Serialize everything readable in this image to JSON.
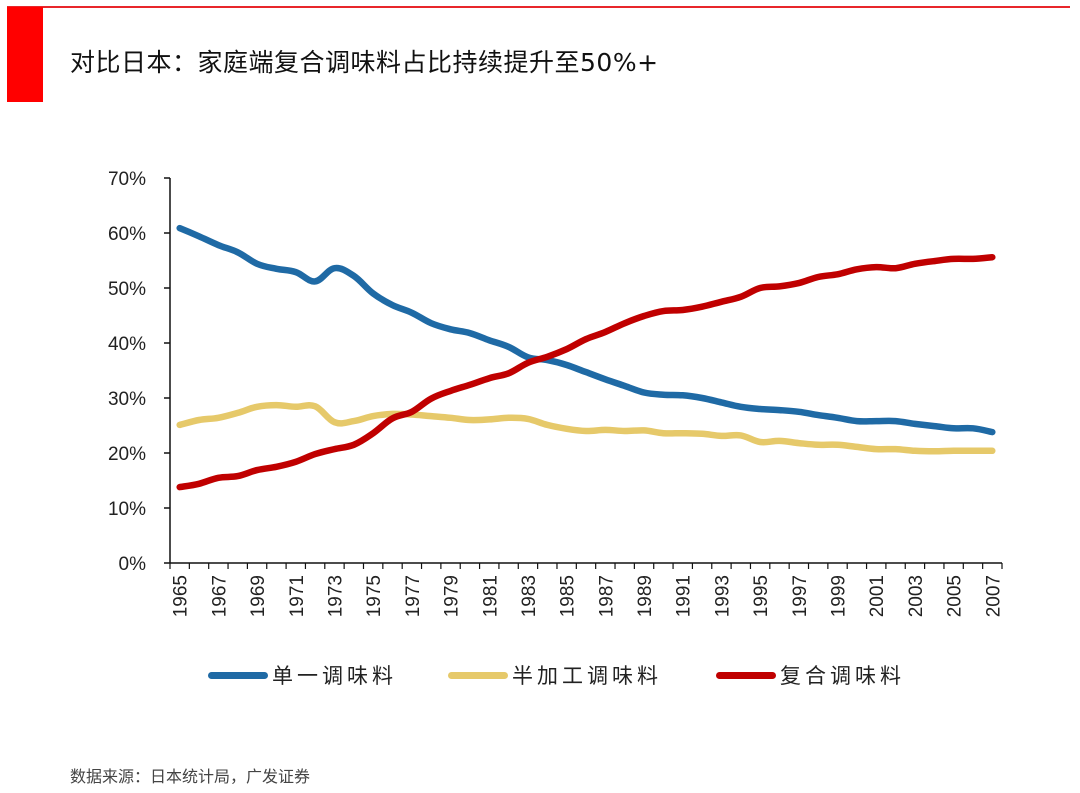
{
  "header": {
    "title": "对比日本：家庭端复合调味料占比持续提升至50%+",
    "accent_color": "#ff0000"
  },
  "source": "数据来源：日本统计局，广发证券",
  "chart_data": {
    "type": "line",
    "title": "对比日本：家庭端复合调味料占比持续提升至50%+",
    "xlabel": "",
    "ylabel": "",
    "ylim": [
      0,
      70
    ],
    "yticks": [
      0,
      10,
      20,
      30,
      40,
      50,
      60,
      70
    ],
    "ytick_labels": [
      "0%",
      "10%",
      "20%",
      "30%",
      "40%",
      "50%",
      "60%",
      "70%"
    ],
    "y_unit": "%",
    "grid": false,
    "legend_position": "bottom",
    "x": [
      "1965",
      "1966",
      "1967",
      "1968",
      "1969",
      "1970",
      "1971",
      "1972",
      "1973",
      "1974",
      "1975",
      "1976",
      "1977",
      "1978",
      "1979",
      "1980",
      "1981",
      "1982",
      "1983",
      "1984",
      "1985",
      "1986",
      "1987",
      "1988",
      "1989",
      "1990",
      "1991",
      "1992",
      "1993",
      "1994",
      "1995",
      "1996",
      "1997",
      "1998",
      "1999",
      "2000",
      "2001",
      "2002",
      "2003",
      "2004",
      "2005",
      "2006",
      "2007"
    ],
    "xtick_labels": [
      "1965",
      "1967",
      "1969",
      "1971",
      "1973",
      "1975",
      "1977",
      "1979",
      "1981",
      "1983",
      "1985",
      "1987",
      "1989",
      "1991",
      "1993",
      "1995",
      "1997",
      "1999",
      "2001",
      "2003",
      "2005",
      "2007"
    ],
    "series": [
      {
        "name": "单一调味料",
        "color": "#1f6aa5",
        "values": [
          60.9,
          59.4,
          57.8,
          56.5,
          54.4,
          53.5,
          52.9,
          51.2,
          53.6,
          52.2,
          49.0,
          46.9,
          45.5,
          43.6,
          42.5,
          41.8,
          40.5,
          39.3,
          37.4,
          36.9,
          36.0,
          34.7,
          33.4,
          32.2,
          31.0,
          30.6,
          30.5,
          30.0,
          29.2,
          28.4,
          28.0,
          27.8,
          27.5,
          26.9,
          26.4,
          25.8,
          25.8,
          25.8,
          25.3,
          24.9,
          24.5,
          24.5,
          23.8
        ]
      },
      {
        "name": "半加工调味料",
        "color": "#e6c96a",
        "values": [
          25.1,
          26.0,
          26.4,
          27.3,
          28.4,
          28.7,
          28.4,
          28.5,
          25.6,
          25.8,
          26.7,
          27.1,
          27.0,
          26.7,
          26.4,
          26.0,
          26.1,
          26.4,
          26.2,
          25.1,
          24.4,
          24.0,
          24.2,
          24.0,
          24.1,
          23.6,
          23.6,
          23.5,
          23.1,
          23.2,
          22.0,
          22.2,
          21.8,
          21.5,
          21.5,
          21.1,
          20.7,
          20.7,
          20.4,
          20.3,
          20.4,
          20.4,
          20.4
        ]
      },
      {
        "name": "复合调味料",
        "color": "#c00000",
        "values": [
          13.8,
          14.4,
          15.5,
          15.8,
          16.9,
          17.5,
          18.4,
          19.8,
          20.7,
          21.5,
          23.6,
          26.3,
          27.5,
          29.9,
          31.3,
          32.4,
          33.6,
          34.5,
          36.4,
          37.5,
          38.9,
          40.7,
          42.0,
          43.6,
          44.9,
          45.8,
          46.0,
          46.6,
          47.5,
          48.4,
          50.0,
          50.3,
          50.9,
          52.0,
          52.5,
          53.4,
          53.8,
          53.6,
          54.4,
          54.9,
          55.3,
          55.3,
          55.6
        ]
      }
    ]
  }
}
